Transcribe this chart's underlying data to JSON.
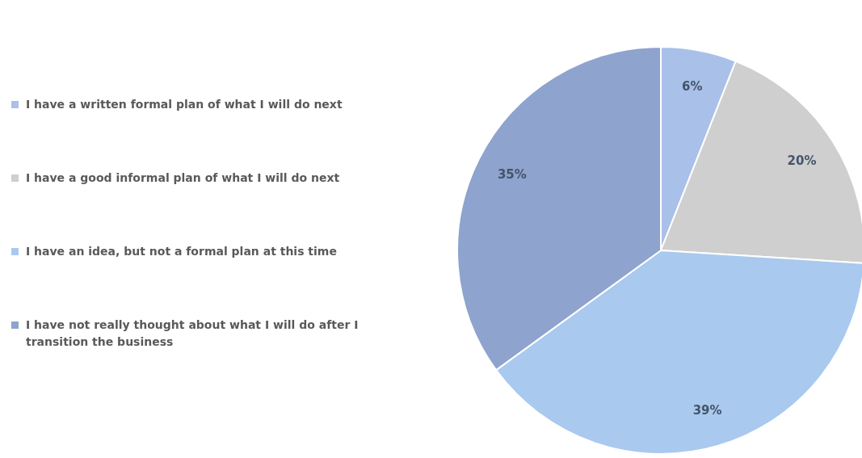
{
  "chart_data": {
    "type": "pie",
    "categories": [
      "I have a written formal plan of what I will do next",
      "I have a good informal plan of what I will do next",
      "I have an idea, but not a formal plan at this time",
      "I have not really thought about what I will do after I transition the business"
    ],
    "values": [
      6,
      20,
      39,
      35
    ],
    "colors": [
      "#a9c0e8",
      "#cfcfcf",
      "#a9c9ee",
      "#8ea3cd"
    ],
    "value_labels": [
      "6%",
      "20%",
      "39%",
      "35%"
    ],
    "legend": "left"
  }
}
